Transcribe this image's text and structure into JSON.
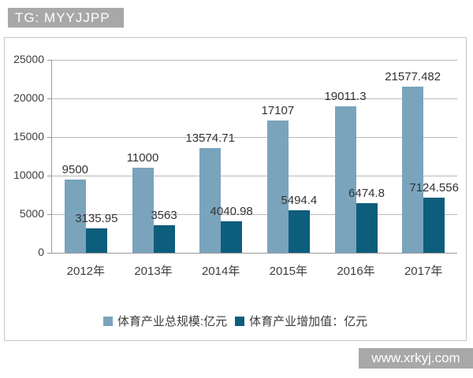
{
  "watermark_top": {
    "text": "TG: MYYJJPP",
    "bg": "#a8a8a8"
  },
  "watermark_bottom": {
    "text": "www.xrkyj.com",
    "bg": "#a8a8a8"
  },
  "chart_data": {
    "type": "bar",
    "categories": [
      "2012年",
      "2013年",
      "2014年",
      "2015年",
      "2016年",
      "2017年"
    ],
    "series": [
      {
        "name": "体育产业总规模:亿元",
        "color": "#7aa4bc",
        "values": [
          9500,
          11000,
          13574.71,
          17107,
          19011.3,
          21577.482
        ],
        "labels": [
          "9500",
          "11000",
          "13574.71",
          "17107",
          "19011.3",
          "21577.482"
        ]
      },
      {
        "name": "体育产业增加值：亿元",
        "color": "#0d5d7c",
        "values": [
          3135.95,
          3563,
          4040.98,
          5494.4,
          6474.8,
          7124.556
        ],
        "labels": [
          "3135.95",
          "3563",
          "4040.98",
          "5494.4",
          "6474.8",
          "7124.556"
        ]
      }
    ],
    "title": "",
    "xlabel": "",
    "ylabel": "",
    "ylim": [
      0,
      25000
    ],
    "ytick_interval": 5000,
    "yticks": [
      "0",
      "5000",
      "10000",
      "15000",
      "20000",
      "25000"
    ],
    "grid": true,
    "legend_position": "bottom",
    "text_color": "#3d3d3d",
    "gridline_color": "#b9b9b9",
    "axis_color": "#9a9a9a"
  }
}
